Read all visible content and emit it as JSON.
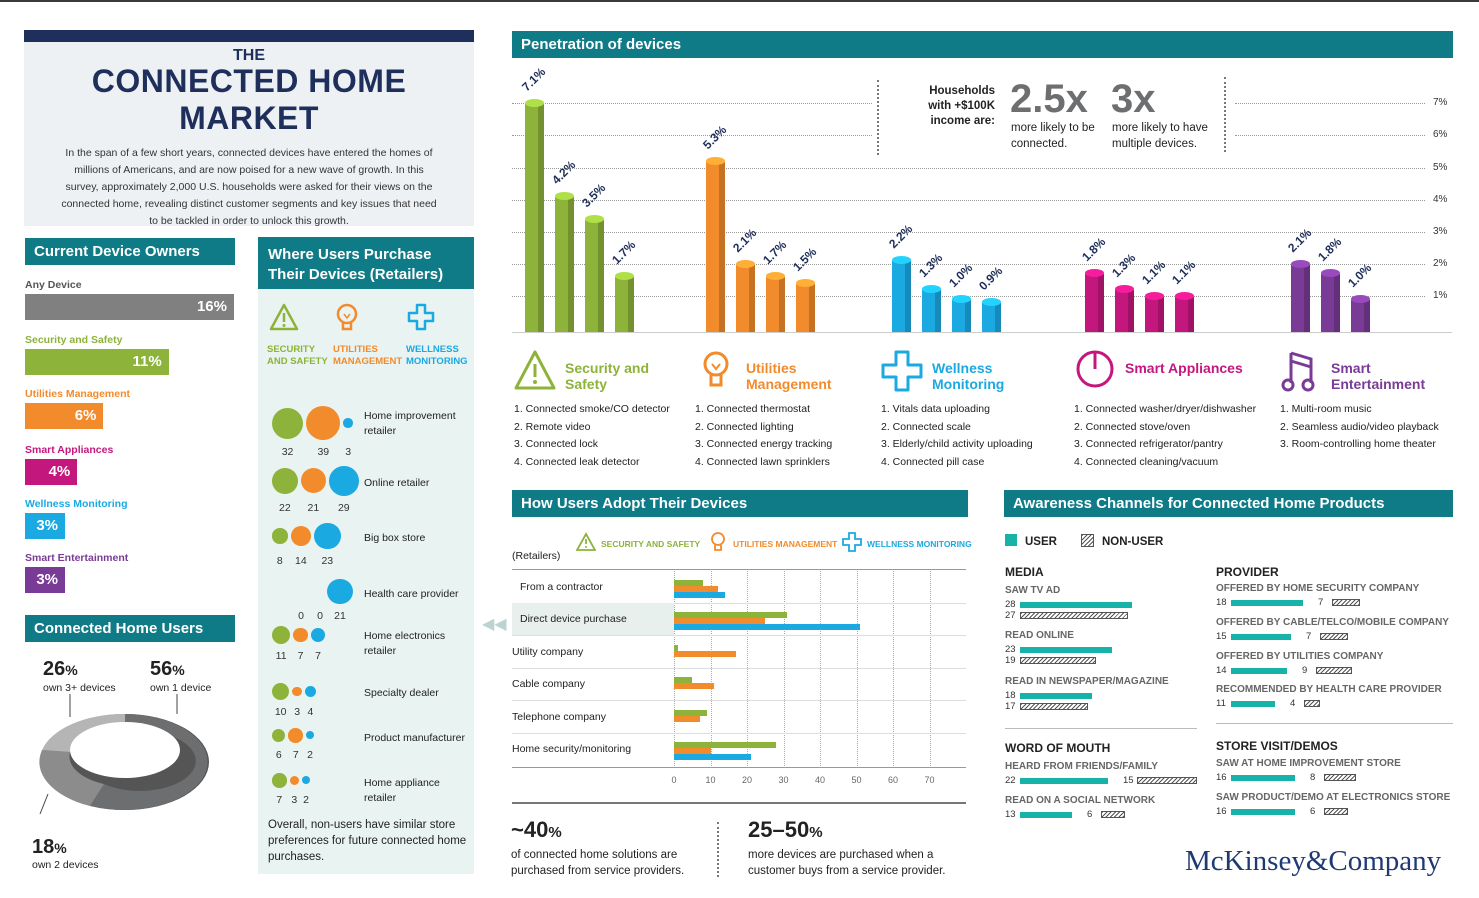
{
  "intro": {
    "pre": "THE",
    "title": "CONNECTED HOME MARKET",
    "body": "In the span of a few short years, connected devices have entered the homes of millions of Americans, and are now poised for a new wave of growth. In this survey, approximately 2,000 U.S. households were asked for their views on the connected home, revealing distinct customer segments and key issues that need to be tackled in order to unlock this growth."
  },
  "owners": {
    "title": "Current Device Owners",
    "items": [
      {
        "label": "Any Device",
        "value": "16%",
        "share": 16,
        "color": "#808080"
      },
      {
        "label": "Security and Safety",
        "value": "11%",
        "share": 11,
        "color": "#8db33a"
      },
      {
        "label": "Utilities Management",
        "value": "6%",
        "share": 6,
        "color": "#f28b2b"
      },
      {
        "label": "Smart Appliances",
        "value": "4%",
        "share": 4,
        "color": "#c4177d"
      },
      {
        "label": "Wellness Monitoring",
        "value": "3%",
        "share": 3,
        "color": "#1ba9e1"
      },
      {
        "label": "Smart Entertainment",
        "value": "3%",
        "share": 3,
        "color": "#7a3b96"
      }
    ]
  },
  "users": {
    "title": "Connected Home Users",
    "a_val": "26",
    "a_unit": "%",
    "a_txt": "own 3+ devices",
    "b_val": "56",
    "b_unit": "%",
    "b_txt": "own 1 device",
    "c_val": "18",
    "c_unit": "%",
    "c_txt": "own 2 devices"
  },
  "retailers": {
    "title": "Where Users Purchase Their Devices (Retailers)",
    "cats": [
      "SECURITY AND SAFETY",
      "UTILITIES MANAGEMENT",
      "WELLNESS MONITORING"
    ],
    "footer": "Overall, non-users have similar store preferences for future connected home purchases.",
    "rows": [
      {
        "label": "Home improvement retailer",
        "v": [
          "32",
          "39",
          "3"
        ]
      },
      {
        "label": "Online retailer",
        "v": [
          "22",
          "21",
          "29"
        ]
      },
      {
        "label": "Big box store",
        "v": [
          "8",
          "14",
          "23"
        ]
      },
      {
        "label": "Health care provider",
        "v": [
          "0",
          "0",
          "21"
        ]
      },
      {
        "label": "Home electronics retailer",
        "v": [
          "11",
          "7",
          "7"
        ]
      },
      {
        "label": "Specialty dealer",
        "v": [
          "10",
          "3",
          "4"
        ]
      },
      {
        "label": "Product manufacturer",
        "v": [
          "6",
          "7",
          "2"
        ]
      },
      {
        "label": "Home appliance retailer",
        "v": [
          "7",
          "3",
          "2"
        ]
      }
    ]
  },
  "penetration": {
    "title": "Penetration of devices",
    "hh_label": "Households with +$100K income are:",
    "s1_val": "2.5x",
    "s1_txt": "more likely to be connected.",
    "s2_val": "3x",
    "s2_txt": "more likely to have multiple devices.",
    "ticks": [
      "7%",
      "6%",
      "5%",
      "4%",
      "3%",
      "2%",
      "1%"
    ],
    "groups": [
      {
        "name": "Security and Safety",
        "color": "#8db33a",
        "values": [
          7.1,
          4.2,
          3.5,
          1.7
        ],
        "labels": [
          "7.1%",
          "4.2%",
          "3.5%",
          "1.7%"
        ],
        "items": [
          "1. Connected smoke/CO detector",
          "2. Remote video",
          "3. Connected lock",
          "4. Connected leak detector"
        ]
      },
      {
        "name": "Utilities Management",
        "color": "#f28b2b",
        "values": [
          5.3,
          2.1,
          1.7,
          1.5
        ],
        "labels": [
          "5.3%",
          "2.1%",
          "1.7%",
          "1.5%"
        ],
        "items": [
          "1. Connected thermostat",
          "2. Connected lighting",
          "3. Connected energy tracking",
          "4. Connected lawn sprinklers"
        ]
      },
      {
        "name": "Wellness Monitoring",
        "color": "#1ba9e1",
        "values": [
          2.2,
          1.3,
          1.0,
          0.9
        ],
        "labels": [
          "2.2%",
          "1.3%",
          "1.0%",
          "0.9%"
        ],
        "items": [
          "1. Vitals data uploading",
          "2. Connected scale",
          "3. Elderly/child activity uploading",
          "4. Connected pill case"
        ]
      },
      {
        "name": "Smart Appliances",
        "color": "#c4177d",
        "values": [
          1.8,
          1.3,
          1.1,
          1.1
        ],
        "labels": [
          "1.8%",
          "1.3%",
          "1.1%",
          "1.1%"
        ],
        "items": [
          "1. Connected washer/dryer/dishwasher",
          "2. Connected stove/oven",
          "3. Connected refrigerator/pantry",
          "4. Connected cleaning/vacuum"
        ]
      },
      {
        "name": "Smart Entertainment",
        "color": "#7a3b96",
        "values": [
          2.1,
          1.8,
          1.0
        ],
        "labels": [
          "2.1%",
          "1.8%",
          "1.0%"
        ],
        "items": [
          "1. Multi-room music",
          "2. Seamless audio/video playback",
          "3. Room-controlling home theater"
        ]
      }
    ]
  },
  "adopt": {
    "title": "How Users Adopt Their Devices",
    "retailers_lbl": "(Retailers)",
    "legend": [
      "SECURITY AND SAFETY",
      "UTILITIES MANAGEMENT",
      "WELLNESS MONITORING"
    ],
    "xticks": [
      "0",
      "10",
      "20",
      "30",
      "40",
      "50",
      "60",
      "70"
    ],
    "rows": [
      {
        "label": "From a contractor",
        "v": [
          8,
          12,
          14
        ]
      },
      {
        "label": "Direct device purchase",
        "v": [
          31,
          25,
          51
        ]
      },
      {
        "label": "Utility company",
        "v": [
          1,
          17,
          0
        ]
      },
      {
        "label": "Cable company",
        "v": [
          5,
          11,
          0
        ]
      },
      {
        "label": "Telephone company",
        "v": [
          9,
          7,
          0
        ]
      },
      {
        "label": "Home security/monitoring",
        "v": [
          28,
          10,
          21
        ]
      }
    ],
    "stat1_val": "~40",
    "stat1_unit": "%",
    "stat1_txt": "of connected home solutions are purchased from service providers.",
    "stat2_val": "25–50",
    "stat2_unit": "%",
    "stat2_txt": "more devices are purchased when a customer buys from a service provider."
  },
  "aware": {
    "title": "Awareness Channels for Connected Home Products",
    "user": "USER",
    "nonuser": "NON-USER",
    "media_h": "MEDIA",
    "wom_h": "WORD OF MOUTH",
    "prov_h": "PROVIDER",
    "store_h": "STORE VISIT/DEMOS",
    "media": [
      {
        "l": "SAW TV AD",
        "u": "28",
        "n": "27"
      },
      {
        "l": "READ ONLINE",
        "u": "23",
        "n": "19"
      },
      {
        "l": "READ IN NEWSPAPER/MAGAZINE",
        "u": "18",
        "n": "17"
      }
    ],
    "wom": [
      {
        "l": "HEARD FROM FRIENDS/FAMILY",
        "u": "22",
        "n": "15"
      },
      {
        "l": "READ ON A SOCIAL NETWORK",
        "u": "13",
        "n": "6"
      }
    ],
    "prov": [
      {
        "l": "OFFERED BY HOME SECURITY COMPANY",
        "u": "18",
        "n": "7"
      },
      {
        "l": "OFFERED BY CABLE/TELCO/MOBILE COMPANY",
        "u": "15",
        "n": "7"
      },
      {
        "l": "OFFERED BY UTILITIES COMPANY",
        "u": "14",
        "n": "9"
      },
      {
        "l": "RECOMMENDED BY HEALTH CARE PROVIDER",
        "u": "11",
        "n": "4"
      }
    ],
    "store": [
      {
        "l": "SAW AT HOME IMPROVEMENT STORE",
        "u": "16",
        "n": "8"
      },
      {
        "l": "SAW PRODUCT/DEMO AT ELECTRONICS STORE",
        "u": "16",
        "n": "6"
      }
    ]
  },
  "brand": "McKinsey&Company",
  "chart_data": [
    {
      "type": "bar",
      "title": "Current Device Owners",
      "categories": [
        "Any Device",
        "Security and Safety",
        "Utilities Management",
        "Smart Appliances",
        "Wellness Monitoring",
        "Smart Entertainment"
      ],
      "values": [
        16,
        11,
        6,
        4,
        3,
        3
      ]
    },
    {
      "type": "pie",
      "title": "Connected Home Users",
      "categories": [
        "own 3+ devices",
        "own 1 device",
        "own 2 devices"
      ],
      "values": [
        26,
        56,
        18
      ]
    },
    {
      "type": "bar",
      "title": "Penetration of devices",
      "series": [
        {
          "name": "Security and Safety",
          "values": [
            7.1,
            4.2,
            3.5,
            1.7
          ]
        },
        {
          "name": "Utilities Management",
          "values": [
            5.3,
            2.1,
            1.7,
            1.5
          ]
        },
        {
          "name": "Wellness Monitoring",
          "values": [
            2.2,
            1.3,
            1.0,
            0.9
          ]
        },
        {
          "name": "Smart Appliances",
          "values": [
            1.8,
            1.3,
            1.1,
            1.1
          ]
        },
        {
          "name": "Smart Entertainment",
          "values": [
            2.1,
            1.8,
            1.0
          ]
        }
      ],
      "ylim": [
        0,
        7
      ]
    },
    {
      "type": "bar",
      "title": "How Users Adopt Their Devices",
      "categories": [
        "From a contractor",
        "Direct device purchase",
        "Utility company",
        "Cable company",
        "Telephone company",
        "Home security/monitoring"
      ],
      "series": [
        {
          "name": "SECURITY AND SAFETY",
          "values": [
            8,
            31,
            1,
            5,
            9,
            28
          ]
        },
        {
          "name": "UTILITIES MANAGEMENT",
          "values": [
            12,
            25,
            17,
            11,
            7,
            10
          ]
        },
        {
          "name": "WELLNESS MONITORING",
          "values": [
            14,
            51,
            0,
            0,
            0,
            21
          ]
        }
      ],
      "xlim": [
        0,
        70
      ]
    }
  ]
}
